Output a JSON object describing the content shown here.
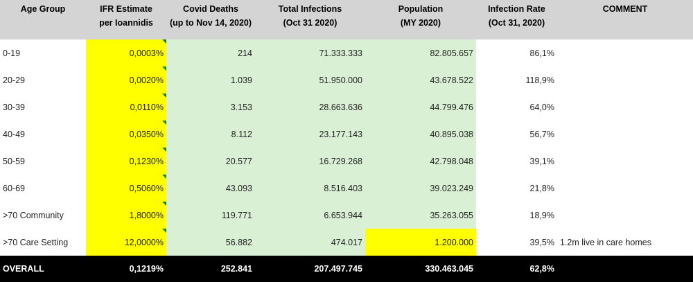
{
  "headers": {
    "age_group": "Age Group",
    "ifr_line1": "IFR Estimate",
    "ifr_line2": "per Ioannidis",
    "deaths_line1": "Covid Deaths",
    "deaths_line2": "(up to Nov 14, 2020)",
    "infections_line1": "Total Infections",
    "infections_line2": "(Oct 31 2020)",
    "population_line1": "Population",
    "population_line2": "(MY 2020)",
    "rate_line1": "Infection Rate",
    "rate_line2": "(Oct 31, 2020)",
    "comment": "COMMENT"
  },
  "rows": [
    {
      "age": "0-19",
      "ifr": "0,0003%",
      "deaths": "214",
      "infections": "71.333.333",
      "population": "82.805.657",
      "rate": "86,1%",
      "comment": ""
    },
    {
      "age": "20-29",
      "ifr": "0,0020%",
      "deaths": "1.039",
      "infections": "51.950.000",
      "population": "43.678.522",
      "rate": "118,9%",
      "comment": ""
    },
    {
      "age": "30-39",
      "ifr": "0,0110%",
      "deaths": "3.153",
      "infections": "28.663.636",
      "population": "44.799.476",
      "rate": "64,0%",
      "comment": ""
    },
    {
      "age": "40-49",
      "ifr": "0,0350%",
      "deaths": "8.112",
      "infections": "23.177.143",
      "population": "40.895.038",
      "rate": "56,7%",
      "comment": ""
    },
    {
      "age": "50-59",
      "ifr": "0,1230%",
      "deaths": "20.577",
      "infections": "16.729.268",
      "population": "42.798.048",
      "rate": "39,1%",
      "comment": ""
    },
    {
      "age": "60-69",
      "ifr": "0,5060%",
      "deaths": "43.093",
      "infections": "8.516.403",
      "population": "39.023.249",
      "rate": "21,8%",
      "comment": ""
    },
    {
      "age": ">70 Community",
      "ifr": "1,8000%",
      "deaths": "119.771",
      "infections": "6.653.944",
      "population": "35.263.055",
      "rate": "18,9%",
      "comment": ""
    },
    {
      "age": ">70 Care Setting",
      "ifr": "12,0000%",
      "deaths": "56.882",
      "infections": "474.017",
      "population": "1.200.000",
      "rate": "39,5%",
      "comment": "1.2m live in care homes"
    }
  ],
  "overall": {
    "label": "OVERALL",
    "ifr": "0,1219%",
    "deaths": "252.841",
    "infections": "207.497.745",
    "population": "330.463.045",
    "rate": "62,8%"
  },
  "colors": {
    "header_bg": "#d4d4d4",
    "ifr_highlight": "#ffff00",
    "data_fill": "#daf0d4",
    "total_bg": "#000000",
    "comment_marker": "#1a7f1a"
  }
}
